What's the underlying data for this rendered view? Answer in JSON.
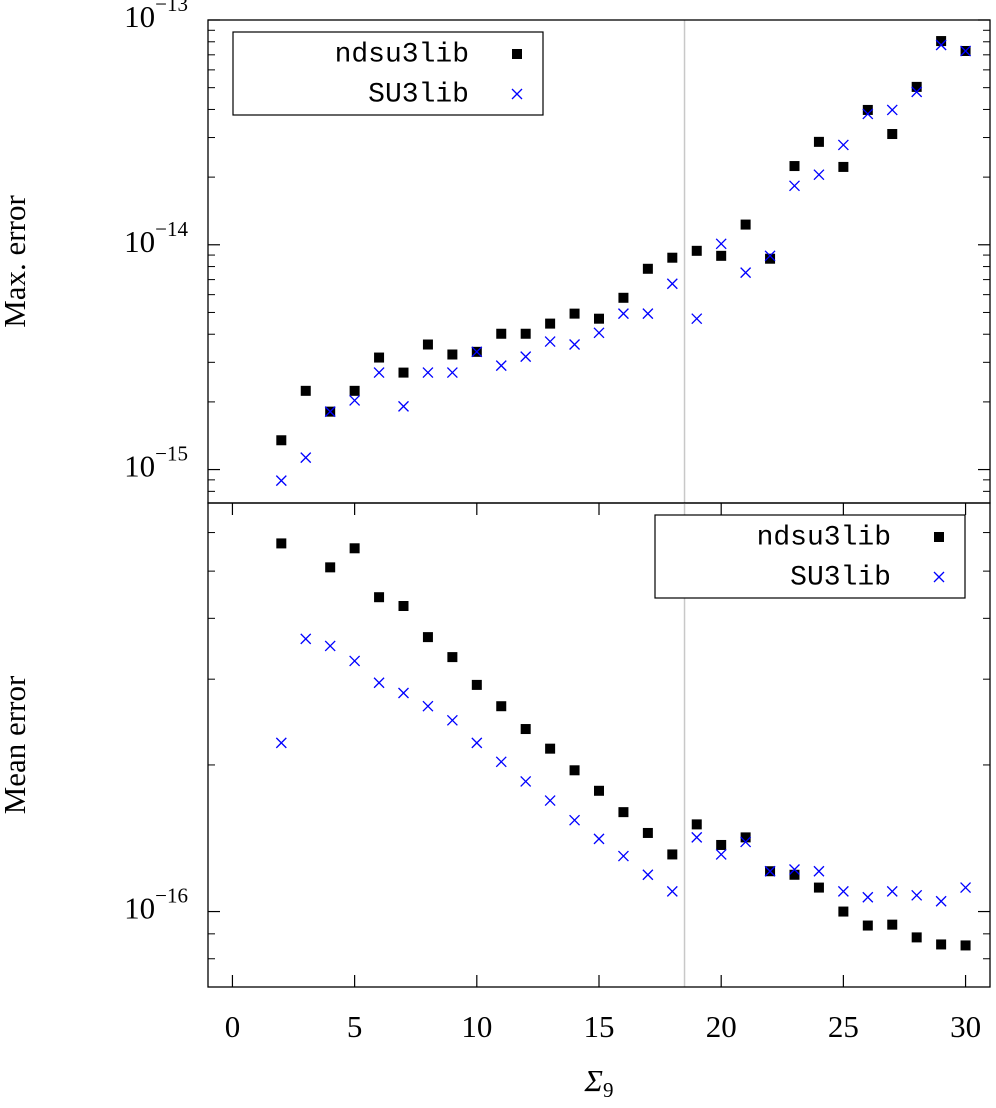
{
  "chart_data": [
    {
      "type": "scatter",
      "ylabel": "Max. error",
      "log_y": true,
      "legend": "top left",
      "xlim": [
        -1,
        31
      ],
      "ylim": [
        7.1e-16,
        1e-13
      ],
      "yticks": [
        {
          "value": 1e-15,
          "label": "10",
          "exponent": "−15"
        },
        {
          "value": 1e-14,
          "label": "10",
          "exponent": "−14"
        },
        {
          "value": 1e-13,
          "label": "10",
          "exponent": "−13"
        }
      ],
      "minor_yticks": [
        8e-16,
        9e-16,
        2e-15,
        3e-15,
        4e-15,
        5e-15,
        6e-15,
        7e-15,
        8e-15,
        9e-15,
        2e-14,
        3e-14,
        4e-14,
        5e-14,
        6e-14,
        7e-14,
        8e-14,
        9e-14
      ],
      "vline": 18.5,
      "x": [
        2,
        3,
        4,
        5,
        6,
        7,
        8,
        9,
        10,
        11,
        12,
        13,
        14,
        15,
        16,
        17,
        18,
        19,
        20,
        21,
        22,
        23,
        24,
        25,
        26,
        27,
        28,
        29,
        30
      ],
      "series": [
        {
          "name": "ndsu3lib",
          "marker": "square",
          "color": "#000000",
          "values": [
            1.35e-15,
            2.24e-15,
            1.81e-15,
            2.24e-15,
            3.15e-15,
            2.7e-15,
            3.6e-15,
            3.25e-15,
            3.34e-15,
            4.02e-15,
            4.02e-15,
            4.46e-15,
            4.94e-15,
            4.69e-15,
            5.81e-15,
            7.82e-15,
            8.76e-15,
            9.4e-15,
            8.93e-15,
            1.23e-14,
            8.67e-15,
            2.24e-14,
            2.87e-14,
            2.22e-14,
            3.98e-14,
            3.11e-14,
            5.04e-14,
            8.06e-14,
            7.28e-14
          ]
        },
        {
          "name": "SU3lib",
          "marker": "x",
          "color": "#0000ff",
          "values": [
            8.93e-16,
            1.13e-15,
            1.81e-15,
            2.03e-15,
            2.7e-15,
            1.91e-15,
            2.7e-15,
            2.7e-15,
            3.34e-15,
            2.9e-15,
            3.18e-15,
            3.71e-15,
            3.6e-15,
            4.06e-15,
            4.94e-15,
            4.94e-15,
            6.71e-15,
            4.69e-15,
            1.01e-14,
            7.52e-15,
            8.93e-15,
            1.83e-14,
            2.05e-14,
            2.78e-14,
            3.82e-14,
            3.98e-14,
            4.79e-14,
            7.74e-14,
            7.28e-14
          ]
        }
      ]
    },
    {
      "type": "scatter",
      "ylabel": "Mean error",
      "log_y": true,
      "legend": "top right",
      "xlabel": {
        "symbol": "Σ",
        "subscript": "9"
      },
      "xlim": [
        -1,
        31
      ],
      "xticks": [
        0,
        5,
        10,
        15,
        20,
        25,
        30
      ],
      "ylim": [
        7e-17,
        6.9e-16
      ],
      "yticks": [
        {
          "value": 1e-16,
          "label": "10",
          "exponent": "−16"
        }
      ],
      "minor_yticks": [
        8e-17,
        9e-17,
        2e-16,
        3e-16,
        4e-16,
        5e-16,
        6e-16
      ],
      "vline": 18.5,
      "x": [
        2,
        3,
        4,
        5,
        6,
        7,
        8,
        9,
        10,
        11,
        12,
        13,
        14,
        15,
        16,
        17,
        18,
        19,
        20,
        21,
        22,
        23,
        24,
        25,
        26,
        27,
        28,
        29,
        30
      ],
      "series": [
        {
          "name": "ndsu3lib",
          "marker": "square",
          "color": "#000000",
          "values": [
            5.7e-16,
            null,
            5.09e-16,
            5.57e-16,
            4.42e-16,
            4.24e-16,
            3.66e-16,
            3.33e-16,
            2.92e-16,
            2.64e-16,
            2.37e-16,
            2.16e-16,
            1.95e-16,
            1.77e-16,
            1.6e-16,
            1.45e-16,
            1.31e-16,
            1.51e-16,
            1.37e-16,
            1.42e-16,
            1.21e-16,
            1.19e-16,
            1.12e-16,
            1e-16,
            9.36e-17,
            9.4e-17,
            8.85e-17,
            8.56e-17,
            8.52e-17
          ]
        },
        {
          "name": "SU3lib",
          "marker": "x",
          "color": "#0000ff",
          "values": [
            2.22e-16,
            3.63e-16,
            3.51e-16,
            3.27e-16,
            2.95e-16,
            2.81e-16,
            2.64e-16,
            2.47e-16,
            2.22e-16,
            2.03e-16,
            1.85e-16,
            1.69e-16,
            1.54e-16,
            1.41e-16,
            1.3e-16,
            1.19e-16,
            1.1e-16,
            1.42e-16,
            1.31e-16,
            1.39e-16,
            1.21e-16,
            1.22e-16,
            1.21e-16,
            1.1e-16,
            1.07e-16,
            1.1e-16,
            1.08e-16,
            1.05e-16,
            1.12e-16
          ]
        }
      ]
    }
  ]
}
